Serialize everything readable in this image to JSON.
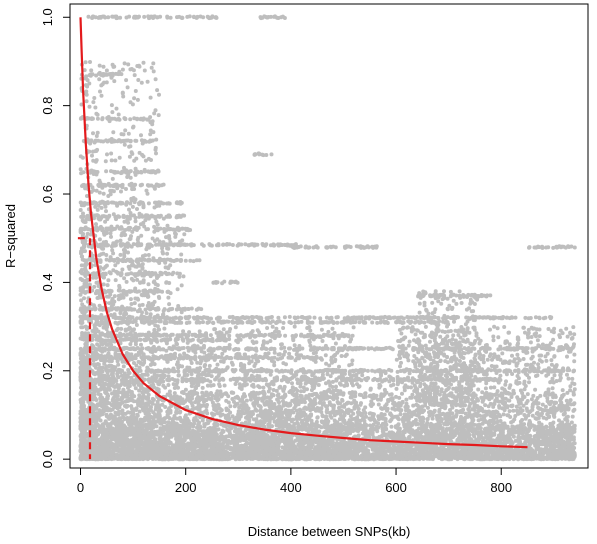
{
  "chart_data": {
    "type": "scatter",
    "title": "",
    "xlabel": "Distance between SNPs(kb)",
    "ylabel": "R−squared",
    "xlim": [
      -20,
      965
    ],
    "ylim": [
      -0.02,
      1.03
    ],
    "x_ticks": [
      0,
      200,
      400,
      600,
      800
    ],
    "y_ticks": [
      0.0,
      0.2,
      0.4,
      0.6,
      0.8,
      1.0
    ],
    "x_tick_labels": [
      "0",
      "200",
      "400",
      "600",
      "800"
    ],
    "y_tick_labels": [
      "0.0",
      "0.2",
      "0.4",
      "0.6",
      "0.8",
      "1.0"
    ],
    "grid": false,
    "legend": "none",
    "colors": {
      "points": "#bebebe",
      "decay_curve": "#e31a1c",
      "half_decay_marker": "#e31a1c",
      "axis": "#000000"
    },
    "series": [
      {
        "kind": "points",
        "clusters": [
          {
            "x_range": [
              0,
              940
            ],
            "y_range": [
              0.0,
              0.08
            ],
            "count": 2600,
            "x_bias": 1.0,
            "y_bias": 1.8
          },
          {
            "x_range": [
              0,
              260
            ],
            "y_range": [
              0.0,
              0.25
            ],
            "count": 1300,
            "x_bias": 1.7,
            "y_bias": 1.6
          },
          {
            "x_range": [
              0,
              200
            ],
            "y_range": [
              0.0,
              0.55
            ],
            "count": 900,
            "x_bias": 1.4,
            "y_bias": 1.4
          },
          {
            "x_range": [
              0,
              150
            ],
            "y_range": [
              0.0,
              0.9
            ],
            "count": 650,
            "x_bias": 1.2,
            "y_bias": 1.0
          },
          {
            "x_range": [
              200,
              520
            ],
            "y_range": [
              0.0,
              0.3
            ],
            "count": 900,
            "x_bias": 1.0,
            "y_bias": 1.5
          },
          {
            "x_range": [
              300,
              600
            ],
            "y_range": [
              0.0,
              0.2
            ],
            "count": 700,
            "x_bias": 1.0,
            "y_bias": 1.4
          },
          {
            "x_range": [
              600,
              940
            ],
            "y_range": [
              0.0,
              0.3
            ],
            "count": 1300,
            "x_bias": 1.0,
            "y_bias": 1.3
          },
          {
            "x_range": [
              640,
              760
            ],
            "y_range": [
              0.0,
              0.38
            ],
            "count": 450,
            "x_bias": 1.0,
            "y_bias": 1.0
          },
          {
            "x_range": [
              0,
              940
            ],
            "y_range": [
              0.0,
              0.15
            ],
            "count": 1500,
            "x_bias": 1.0,
            "y_bias": 1.2
          }
        ],
        "strips": [
          {
            "x_range": [
              0,
              260
            ],
            "y": 1.0
          },
          {
            "x_range": [
              340,
              395
            ],
            "y": 1.0
          },
          {
            "x_range": [
              0,
              80
            ],
            "y": 0.87
          },
          {
            "x_range": [
              0,
              130
            ],
            "y": 0.77
          },
          {
            "x_range": [
              0,
              150
            ],
            "y": 0.72
          },
          {
            "x_range": [
              330,
              370
            ],
            "y": 0.69
          },
          {
            "x_range": [
              0,
              150
            ],
            "y": 0.65
          },
          {
            "x_range": [
              0,
              160
            ],
            "y": 0.62
          },
          {
            "x_range": [
              0,
              200
            ],
            "y": 0.58
          },
          {
            "x_range": [
              0,
              200
            ],
            "y": 0.55
          },
          {
            "x_range": [
              0,
              210
            ],
            "y": 0.52
          },
          {
            "x_range": [
              0,
              410
            ],
            "y": 0.485
          },
          {
            "x_range": [
              400,
              570
            ],
            "y": 0.48
          },
          {
            "x_range": [
              850,
              940
            ],
            "y": 0.48
          },
          {
            "x_range": [
              0,
              230
            ],
            "y": 0.45
          },
          {
            "x_range": [
              0,
              190
            ],
            "y": 0.42
          },
          {
            "x_range": [
              250,
              300
            ],
            "y": 0.4
          },
          {
            "x_range": [
              0,
              170
            ],
            "y": 0.38
          },
          {
            "x_range": [
              640,
              780
            ],
            "y": 0.37
          },
          {
            "x_range": [
              0,
              230
            ],
            "y": 0.34
          },
          {
            "x_range": [
              0,
              900
            ],
            "y": 0.32
          },
          {
            "x_range": [
              0,
              700
            ],
            "y": 0.31
          },
          {
            "x_range": [
              0,
              520
            ],
            "y": 0.28
          },
          {
            "x_range": [
              0,
              300
            ],
            "y": 0.27
          },
          {
            "x_range": [
              0,
              940
            ],
            "y": 0.25
          },
          {
            "x_range": [
              0,
              460
            ],
            "y": 0.23
          },
          {
            "x_range": [
              0,
              940
            ],
            "y": 0.2
          },
          {
            "x_range": [
              0,
              800
            ],
            "y": 0.18
          }
        ]
      },
      {
        "kind": "decay_curve",
        "x": [
          0,
          2,
          5,
          10,
          15,
          20,
          30,
          40,
          50,
          60,
          80,
          100,
          120,
          150,
          200,
          250,
          300,
          350,
          400,
          450,
          500,
          550,
          600,
          650,
          700,
          750,
          800,
          850
        ],
        "y": [
          1.0,
          0.926,
          0.833,
          0.714,
          0.625,
          0.556,
          0.455,
          0.385,
          0.333,
          0.294,
          0.238,
          0.2,
          0.172,
          0.143,
          0.111,
          0.091,
          0.077,
          0.067,
          0.059,
          0.053,
          0.048,
          0.043,
          0.04,
          0.037,
          0.034,
          0.032,
          0.029,
          0.027
        ]
      },
      {
        "kind": "half_decay_marker",
        "x": [
          -5,
          18
        ],
        "y": [
          0.5,
          0.5
        ],
        "drop_line": {
          "x": 18,
          "y_from": 0.5,
          "y_to": 0.0
        }
      }
    ]
  }
}
